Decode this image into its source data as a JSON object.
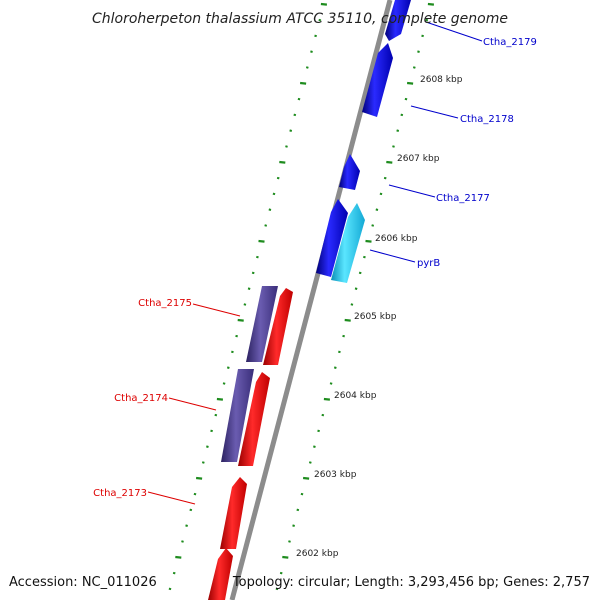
{
  "title": "Chloroherpeton thalassium ATCC 35110, complete genome",
  "footer": {
    "accession": "Accession: NC_011026",
    "summary": "Topology: circular; Length: 3,293,456 bp; Genes: 2,757"
  },
  "colors": {
    "backbone": "#8c8c8c",
    "ticks": "#1e8c1e",
    "forward_cds": "#0a0aee",
    "forward_special": "#22ccf0",
    "reverse_cds": "#ee0a0a",
    "reverse_other": "#4a3c8c",
    "forward_label": "#0000cc",
    "reverse_label": "#dd0000"
  },
  "chart_data": {
    "type": "genome-map-zoom",
    "scale_labels": [
      {
        "kbp": 2608,
        "label": "2608 kbp"
      },
      {
        "kbp": 2607,
        "label": "2607 kbp"
      },
      {
        "kbp": 2606,
        "label": "2606 kbp"
      },
      {
        "kbp": 2605,
        "label": "2605 kbp"
      },
      {
        "kbp": 2604,
        "label": "2604 kbp"
      },
      {
        "kbp": 2603,
        "label": "2603 kbp"
      },
      {
        "kbp": 2602,
        "label": "2602 kbp"
      }
    ],
    "genes": [
      {
        "label": "Ctha_2179",
        "strand": "forward"
      },
      {
        "label": "Ctha_2178",
        "strand": "forward"
      },
      {
        "label": "Ctha_2177",
        "strand": "forward"
      },
      {
        "label": "pyrB",
        "strand": "forward"
      },
      {
        "label": "Ctha_2175",
        "strand": "reverse"
      },
      {
        "label": "Ctha_2174",
        "strand": "reverse"
      },
      {
        "label": "Ctha_2173",
        "strand": "reverse"
      }
    ]
  }
}
